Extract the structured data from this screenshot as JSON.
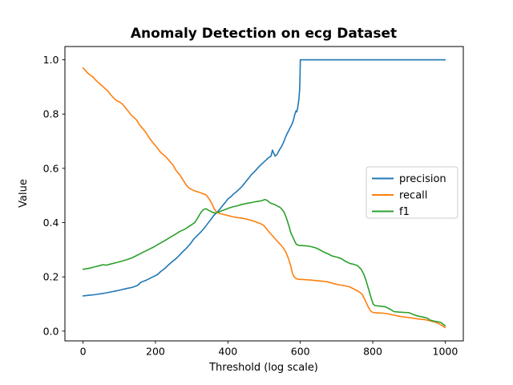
{
  "window": {
    "background_color": "#ffffff"
  },
  "chart_data": {
    "type": "line",
    "title": "Anomaly Detection on ecg Dataset",
    "xlabel": "Threshold (log scale)",
    "ylabel": "Value",
    "xlim": [
      -50,
      1050
    ],
    "ylim": [
      -0.036,
      1.049
    ],
    "grid": false,
    "xticks": {
      "values": [
        0,
        200,
        400,
        600,
        800,
        1000
      ],
      "labels": [
        "0",
        "200",
        "400",
        "600",
        "800",
        "1000"
      ]
    },
    "yticks": {
      "values": [
        0.0,
        0.2,
        0.4,
        0.6,
        0.8,
        1.0
      ],
      "labels": [
        "0.0",
        "0.2",
        "0.4",
        "0.6",
        "0.8",
        "1.0"
      ]
    },
    "legend": {
      "position": "center-right",
      "border_color": "#cccccc",
      "background_color": "#ffffff",
      "entries": [
        {
          "label": "precision",
          "color": "#1f77b4"
        },
        {
          "label": "recall",
          "color": "#ff7f0e"
        },
        {
          "label": "f1",
          "color": "#2ca02c"
        }
      ]
    },
    "series": [
      {
        "name": "precision",
        "color": "#1f77b4",
        "points": [
          [
            0,
            0.13
          ],
          [
            15,
            0.132
          ],
          [
            30,
            0.134
          ],
          [
            45,
            0.137
          ],
          [
            60,
            0.14
          ],
          [
            75,
            0.144
          ],
          [
            90,
            0.148
          ],
          [
            105,
            0.152
          ],
          [
            120,
            0.157
          ],
          [
            135,
            0.161
          ],
          [
            150,
            0.168
          ],
          [
            160,
            0.18
          ],
          [
            175,
            0.188
          ],
          [
            190,
            0.198
          ],
          [
            205,
            0.208
          ],
          [
            215,
            0.22
          ],
          [
            225,
            0.23
          ],
          [
            235,
            0.243
          ],
          [
            245,
            0.255
          ],
          [
            255,
            0.265
          ],
          [
            265,
            0.278
          ],
          [
            275,
            0.292
          ],
          [
            285,
            0.305
          ],
          [
            295,
            0.32
          ],
          [
            305,
            0.338
          ],
          [
            315,
            0.352
          ],
          [
            325,
            0.365
          ],
          [
            335,
            0.38
          ],
          [
            345,
            0.398
          ],
          [
            355,
            0.415
          ],
          [
            362,
            0.428
          ],
          [
            370,
            0.438
          ],
          [
            378,
            0.45
          ],
          [
            385,
            0.462
          ],
          [
            392,
            0.473
          ],
          [
            400,
            0.487
          ],
          [
            408,
            0.495
          ],
          [
            415,
            0.505
          ],
          [
            422,
            0.512
          ],
          [
            430,
            0.522
          ],
          [
            438,
            0.532
          ],
          [
            446,
            0.545
          ],
          [
            455,
            0.56
          ],
          [
            465,
            0.577
          ],
          [
            475,
            0.59
          ],
          [
            485,
            0.605
          ],
          [
            495,
            0.618
          ],
          [
            505,
            0.63
          ],
          [
            513,
            0.64
          ],
          [
            519,
            0.645
          ],
          [
            523,
            0.667
          ],
          [
            526,
            0.658
          ],
          [
            530,
            0.645
          ],
          [
            536,
            0.652
          ],
          [
            542,
            0.668
          ],
          [
            548,
            0.68
          ],
          [
            554,
            0.697
          ],
          [
            560,
            0.718
          ],
          [
            566,
            0.734
          ],
          [
            572,
            0.75
          ],
          [
            577,
            0.763
          ],
          [
            581,
            0.778
          ],
          [
            585,
            0.8
          ],
          [
            588,
            0.812
          ],
          [
            590,
            0.808
          ],
          [
            593,
            0.825
          ],
          [
            596,
            0.855
          ],
          [
            598,
            0.89
          ],
          [
            599,
            0.93
          ],
          [
            600,
            1.0
          ],
          [
            650,
            1.0
          ],
          [
            700,
            1.0
          ],
          [
            750,
            1.0
          ],
          [
            800,
            1.0
          ],
          [
            850,
            1.0
          ],
          [
            900,
            1.0
          ],
          [
            950,
            1.0
          ],
          [
            1000,
            1.0
          ]
        ]
      },
      {
        "name": "recall",
        "color": "#ff7f0e",
        "points": [
          [
            0,
            0.97
          ],
          [
            6,
            0.962
          ],
          [
            12,
            0.952
          ],
          [
            20,
            0.944
          ],
          [
            28,
            0.936
          ],
          [
            36,
            0.924
          ],
          [
            44,
            0.914
          ],
          [
            52,
            0.905
          ],
          [
            60,
            0.895
          ],
          [
            68,
            0.886
          ],
          [
            76,
            0.872
          ],
          [
            84,
            0.86
          ],
          [
            92,
            0.85
          ],
          [
            100,
            0.845
          ],
          [
            108,
            0.838
          ],
          [
            116,
            0.825
          ],
          [
            124,
            0.812
          ],
          [
            132,
            0.798
          ],
          [
            140,
            0.788
          ],
          [
            148,
            0.778
          ],
          [
            156,
            0.76
          ],
          [
            164,
            0.748
          ],
          [
            172,
            0.735
          ],
          [
            180,
            0.718
          ],
          [
            188,
            0.703
          ],
          [
            196,
            0.69
          ],
          [
            205,
            0.675
          ],
          [
            215,
            0.658
          ],
          [
            227,
            0.645
          ],
          [
            238,
            0.628
          ],
          [
            248,
            0.613
          ],
          [
            257,
            0.592
          ],
          [
            266,
            0.578
          ],
          [
            275,
            0.56
          ],
          [
            284,
            0.54
          ],
          [
            292,
            0.528
          ],
          [
            300,
            0.522
          ],
          [
            310,
            0.516
          ],
          [
            320,
            0.512
          ],
          [
            330,
            0.507
          ],
          [
            340,
            0.502
          ],
          [
            348,
            0.488
          ],
          [
            355,
            0.472
          ],
          [
            362,
            0.452
          ],
          [
            368,
            0.44
          ],
          [
            376,
            0.434
          ],
          [
            388,
            0.43
          ],
          [
            400,
            0.426
          ],
          [
            412,
            0.422
          ],
          [
            424,
            0.419
          ],
          [
            436,
            0.417
          ],
          [
            448,
            0.414
          ],
          [
            460,
            0.41
          ],
          [
            472,
            0.405
          ],
          [
            482,
            0.4
          ],
          [
            492,
            0.395
          ],
          [
            500,
            0.388
          ],
          [
            508,
            0.375
          ],
          [
            516,
            0.362
          ],
          [
            524,
            0.35
          ],
          [
            532,
            0.338
          ],
          [
            540,
            0.326
          ],
          [
            548,
            0.315
          ],
          [
            555,
            0.302
          ],
          [
            561,
            0.288
          ],
          [
            567,
            0.268
          ],
          [
            573,
            0.242
          ],
          [
            578,
            0.215
          ],
          [
            583,
            0.2
          ],
          [
            588,
            0.194
          ],
          [
            595,
            0.191
          ],
          [
            610,
            0.19
          ],
          [
            630,
            0.188
          ],
          [
            645,
            0.186
          ],
          [
            660,
            0.184
          ],
          [
            675,
            0.182
          ],
          [
            690,
            0.176
          ],
          [
            705,
            0.171
          ],
          [
            720,
            0.168
          ],
          [
            735,
            0.164
          ],
          [
            748,
            0.155
          ],
          [
            760,
            0.147
          ],
          [
            770,
            0.137
          ],
          [
            776,
            0.122
          ],
          [
            782,
            0.105
          ],
          [
            788,
            0.088
          ],
          [
            794,
            0.075
          ],
          [
            800,
            0.069
          ],
          [
            815,
            0.067
          ],
          [
            830,
            0.066
          ],
          [
            845,
            0.063
          ],
          [
            858,
            0.059
          ],
          [
            872,
            0.055
          ],
          [
            886,
            0.052
          ],
          [
            900,
            0.05
          ],
          [
            915,
            0.047
          ],
          [
            930,
            0.044
          ],
          [
            945,
            0.042
          ],
          [
            958,
            0.038
          ],
          [
            970,
            0.034
          ],
          [
            982,
            0.028
          ],
          [
            992,
            0.02
          ],
          [
            1000,
            0.013
          ]
        ]
      },
      {
        "name": "f1",
        "color": "#2ca02c",
        "points": [
          [
            0,
            0.228
          ],
          [
            15,
            0.231
          ],
          [
            30,
            0.236
          ],
          [
            45,
            0.241
          ],
          [
            55,
            0.245
          ],
          [
            65,
            0.243
          ],
          [
            75,
            0.247
          ],
          [
            90,
            0.252
          ],
          [
            105,
            0.257
          ],
          [
            120,
            0.263
          ],
          [
            135,
            0.27
          ],
          [
            150,
            0.28
          ],
          [
            165,
            0.29
          ],
          [
            180,
            0.3
          ],
          [
            195,
            0.31
          ],
          [
            210,
            0.322
          ],
          [
            225,
            0.333
          ],
          [
            240,
            0.345
          ],
          [
            255,
            0.357
          ],
          [
            268,
            0.368
          ],
          [
            280,
            0.375
          ],
          [
            292,
            0.385
          ],
          [
            300,
            0.392
          ],
          [
            308,
            0.4
          ],
          [
            315,
            0.413
          ],
          [
            322,
            0.43
          ],
          [
            328,
            0.442
          ],
          [
            334,
            0.449
          ],
          [
            340,
            0.451
          ],
          [
            346,
            0.446
          ],
          [
            352,
            0.442
          ],
          [
            358,
            0.438
          ],
          [
            365,
            0.435
          ],
          [
            372,
            0.437
          ],
          [
            380,
            0.442
          ],
          [
            388,
            0.446
          ],
          [
            396,
            0.45
          ],
          [
            406,
            0.455
          ],
          [
            416,
            0.459
          ],
          [
            426,
            0.462
          ],
          [
            436,
            0.466
          ],
          [
            446,
            0.469
          ],
          [
            456,
            0.472
          ],
          [
            466,
            0.474
          ],
          [
            476,
            0.477
          ],
          [
            486,
            0.479
          ],
          [
            494,
            0.481
          ],
          [
            502,
            0.485
          ],
          [
            508,
            0.482
          ],
          [
            513,
            0.477
          ],
          [
            518,
            0.472
          ],
          [
            524,
            0.469
          ],
          [
            530,
            0.466
          ],
          [
            537,
            0.461
          ],
          [
            544,
            0.456
          ],
          [
            550,
            0.448
          ],
          [
            556,
            0.436
          ],
          [
            562,
            0.415
          ],
          [
            568,
            0.39
          ],
          [
            574,
            0.362
          ],
          [
            580,
            0.345
          ],
          [
            585,
            0.33
          ],
          [
            589,
            0.32
          ],
          [
            596,
            0.316
          ],
          [
            610,
            0.315
          ],
          [
            625,
            0.313
          ],
          [
            640,
            0.308
          ],
          [
            652,
            0.301
          ],
          [
            664,
            0.292
          ],
          [
            676,
            0.285
          ],
          [
            688,
            0.277
          ],
          [
            700,
            0.273
          ],
          [
            712,
            0.268
          ],
          [
            724,
            0.258
          ],
          [
            736,
            0.25
          ],
          [
            748,
            0.246
          ],
          [
            758,
            0.241
          ],
          [
            768,
            0.228
          ],
          [
            775,
            0.21
          ],
          [
            781,
            0.188
          ],
          [
            786,
            0.166
          ],
          [
            791,
            0.143
          ],
          [
            796,
            0.12
          ],
          [
            801,
            0.1
          ],
          [
            806,
            0.094
          ],
          [
            820,
            0.092
          ],
          [
            834,
            0.09
          ],
          [
            848,
            0.081
          ],
          [
            858,
            0.072
          ],
          [
            872,
            0.07
          ],
          [
            886,
            0.069
          ],
          [
            900,
            0.068
          ],
          [
            914,
            0.06
          ],
          [
            926,
            0.055
          ],
          [
            938,
            0.052
          ],
          [
            950,
            0.048
          ],
          [
            958,
            0.041
          ],
          [
            968,
            0.037
          ],
          [
            978,
            0.035
          ],
          [
            988,
            0.032
          ],
          [
            995,
            0.025
          ],
          [
            1000,
            0.02
          ]
        ]
      }
    ]
  }
}
